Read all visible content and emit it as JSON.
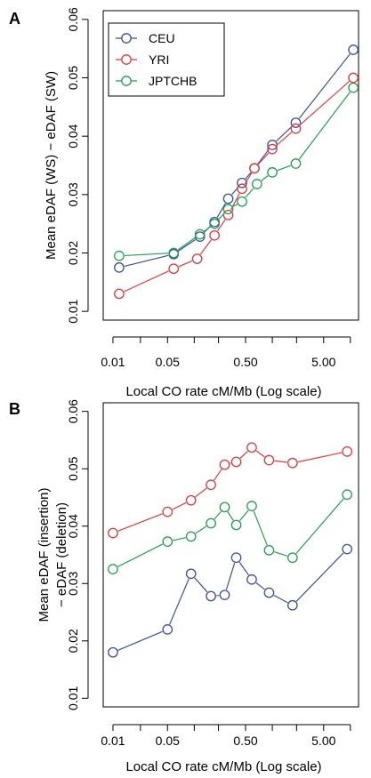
{
  "chart_data": [
    {
      "type": "line",
      "panel_label": "A",
      "xlabel": "Local CO rate cM/Mb (Log scale)",
      "ylabel": "Mean eDAF (WS) − eDAF (SW)",
      "x_scale": "log",
      "xlim": [
        0.0075,
        14
      ],
      "ylim": [
        0.0085,
        0.0615
      ],
      "x_ticks": [
        {
          "value": 0.01,
          "label": "0.01"
        },
        {
          "value": 0.05,
          "label": "0.05"
        },
        {
          "value": 0.5,
          "label": "0.50"
        },
        {
          "value": 5,
          "label": "5.00"
        }
      ],
      "x_minor_ticks": [
        0.0225,
        0.11,
        0.225,
        1.1,
        2.25,
        11
      ],
      "y_ticks": [
        {
          "value": 0.01,
          "label": "0.01"
        },
        {
          "value": 0.02,
          "label": "0.02"
        },
        {
          "value": 0.03,
          "label": "0.03"
        },
        {
          "value": 0.04,
          "label": "0.04"
        },
        {
          "value": 0.05,
          "label": "0.05"
        },
        {
          "value": 0.06,
          "label": "0.06"
        }
      ],
      "grid": false,
      "legend": {
        "position": "top-left"
      },
      "series": [
        {
          "name": "CEU",
          "color": "#3a4fa0",
          "x": [
            0.012,
            0.06,
            0.13,
            0.2,
            0.3,
            0.45,
            0.65,
            1.1,
            2.2,
            12
          ],
          "y": [
            0.0175,
            0.0198,
            0.0228,
            0.0253,
            0.0293,
            0.032,
            0.0345,
            0.0385,
            0.0423,
            0.0548
          ]
        },
        {
          "name": "YRI",
          "color": "#e0393b",
          "x": [
            0.012,
            0.06,
            0.12,
            0.2,
            0.3,
            0.45,
            0.65,
            1.1,
            2.2,
            12
          ],
          "y": [
            0.013,
            0.0173,
            0.019,
            0.023,
            0.0265,
            0.031,
            0.0345,
            0.0378,
            0.0413,
            0.05
          ]
        },
        {
          "name": "JPTCHB",
          "color": "#20a050",
          "x": [
            0.012,
            0.06,
            0.13,
            0.2,
            0.3,
            0.45,
            0.7,
            1.1,
            2.2,
            12
          ],
          "y": [
            0.0195,
            0.02,
            0.0232,
            0.025,
            0.0275,
            0.0288,
            0.0318,
            0.0338,
            0.0353,
            0.0483
          ]
        }
      ]
    },
    {
      "type": "line",
      "panel_label": "B",
      "xlabel": "Local CO rate cM/Mb (Log scale)",
      "ylabel": [
        "Mean eDAF (insertion)",
        "− eDAF (deletion)"
      ],
      "x_scale": "log",
      "xlim": [
        0.0075,
        14
      ],
      "ylim": [
        0.0085,
        0.0615
      ],
      "x_ticks": [
        {
          "value": 0.01,
          "label": "0.01"
        },
        {
          "value": 0.05,
          "label": "0.05"
        },
        {
          "value": 0.5,
          "label": "0.50"
        },
        {
          "value": 5,
          "label": "5.00"
        }
      ],
      "x_minor_ticks": [
        0.0225,
        0.11,
        0.225,
        1.1,
        2.25,
        11
      ],
      "y_ticks": [
        {
          "value": 0.01,
          "label": "0.01"
        },
        {
          "value": 0.02,
          "label": "0.02"
        },
        {
          "value": 0.03,
          "label": "0.03"
        },
        {
          "value": 0.04,
          "label": "0.04"
        },
        {
          "value": 0.05,
          "label": "0.05"
        },
        {
          "value": 0.06,
          "label": "0.06"
        }
      ],
      "grid": false,
      "series": [
        {
          "color": "#e0393b",
          "x": [
            0.01,
            0.05,
            0.1,
            0.18,
            0.27,
            0.38,
            0.6,
            1.0,
            2.0,
            10
          ],
          "y": [
            0.0388,
            0.0425,
            0.0445,
            0.0472,
            0.0507,
            0.0512,
            0.0537,
            0.0515,
            0.051,
            0.053
          ]
        },
        {
          "color": "#20a050",
          "x": [
            0.01,
            0.05,
            0.1,
            0.18,
            0.27,
            0.38,
            0.6,
            1.0,
            2.0,
            10
          ],
          "y": [
            0.0325,
            0.0373,
            0.0382,
            0.0405,
            0.0433,
            0.0402,
            0.0435,
            0.0358,
            0.0345,
            0.0455
          ]
        },
        {
          "color": "#3a4fa0",
          "x": [
            0.01,
            0.05,
            0.1,
            0.18,
            0.27,
            0.38,
            0.6,
            1.0,
            2.0,
            10
          ],
          "y": [
            0.018,
            0.022,
            0.0317,
            0.0278,
            0.028,
            0.0345,
            0.0307,
            0.0284,
            0.0262,
            0.036
          ]
        }
      ]
    }
  ]
}
